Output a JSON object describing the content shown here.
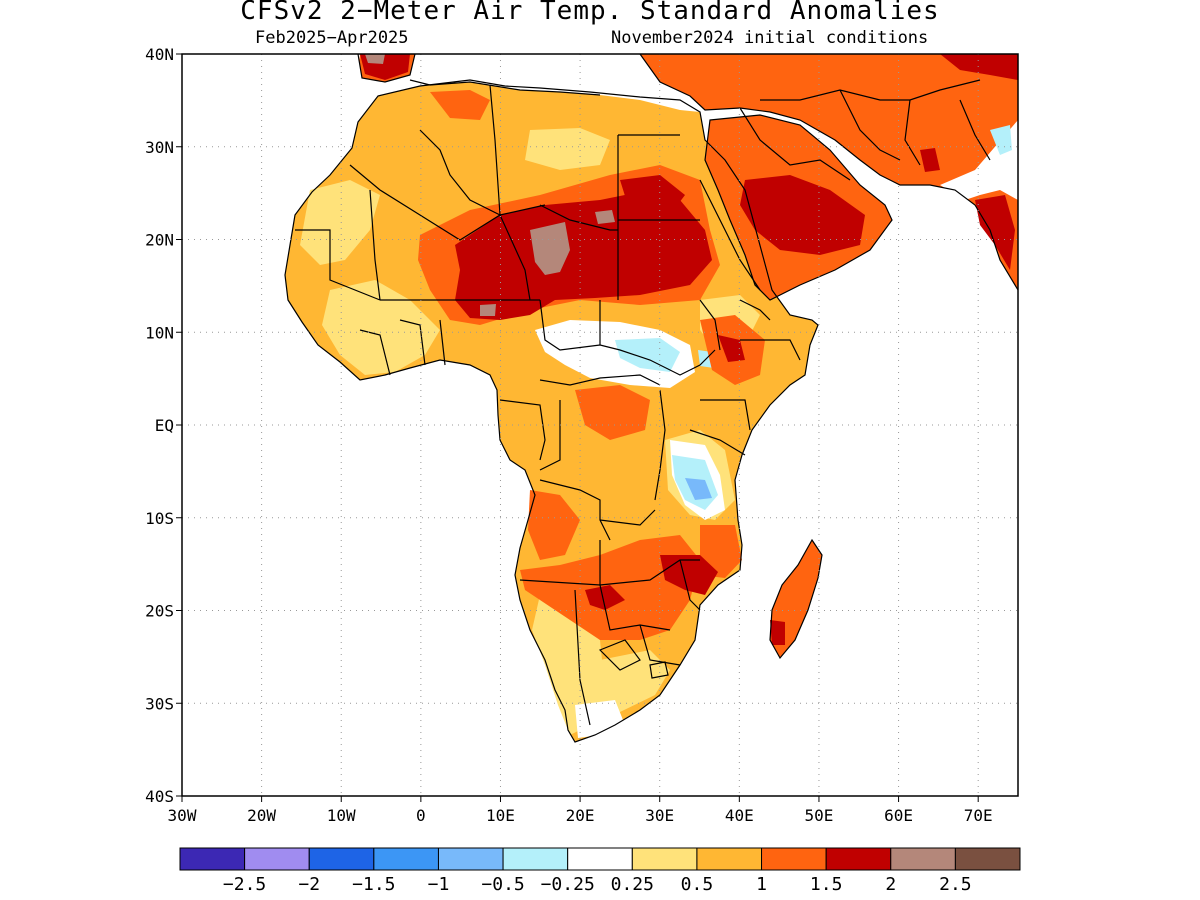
{
  "title": "CFSv2 2−Meter Air Temp. Standard Anomalies",
  "subtitle_left": "Feb2025−Apr2025",
  "subtitle_right": "November2024 initial conditions",
  "map": {
    "lon_range": [
      -30,
      75
    ],
    "lat_range": [
      -40,
      40
    ],
    "grid": "dotted",
    "lat_ticks": [
      {
        "value": 40,
        "label": "40N"
      },
      {
        "value": 30,
        "label": "30N"
      },
      {
        "value": 20,
        "label": "20N"
      },
      {
        "value": 10,
        "label": "10N"
      },
      {
        "value": 0,
        "label": "EQ"
      },
      {
        "value": -10,
        "label": "10S"
      },
      {
        "value": -20,
        "label": "20S"
      },
      {
        "value": -30,
        "label": "30S"
      },
      {
        "value": -40,
        "label": "40S"
      }
    ],
    "lon_ticks": [
      {
        "value": -30,
        "label": "30W"
      },
      {
        "value": -20,
        "label": "20W"
      },
      {
        "value": -10,
        "label": "10W"
      },
      {
        "value": 0,
        "label": "0"
      },
      {
        "value": 10,
        "label": "10E"
      },
      {
        "value": 20,
        "label": "20E"
      },
      {
        "value": 30,
        "label": "30E"
      },
      {
        "value": 40,
        "label": "40E"
      },
      {
        "value": 50,
        "label": "50E"
      },
      {
        "value": 60,
        "label": "60E"
      },
      {
        "value": 70,
        "label": "70E"
      }
    ],
    "colors": {
      "land_outline": "#000000",
      "background": "#ffffff",
      "anom_025_05": "#ffe27a",
      "anom_05_1": "#ffb733",
      "anom_1_15": "#ff6410",
      "anom_15_2": "#c00000",
      "anom_2_25": "#b4877a",
      "anom_neg_025_05": "#b4f0fa",
      "anom_neg_05_1": "#78b9fa"
    }
  },
  "colorbar": {
    "labels": [
      "−2.5",
      "−2",
      "−1.5",
      "−1",
      "−0.5",
      "−0.25",
      "0.25",
      "0.5",
      "1",
      "1.5",
      "2",
      "2.5"
    ],
    "colors": [
      "#3c28b4",
      "#a08cf0",
      "#1e64e6",
      "#3c96f5",
      "#78b9fa",
      "#b4f0fa",
      "#ffffff",
      "#ffe27a",
      "#ffb733",
      "#ff6410",
      "#c00000",
      "#b4877a",
      "#7a5040"
    ]
  }
}
